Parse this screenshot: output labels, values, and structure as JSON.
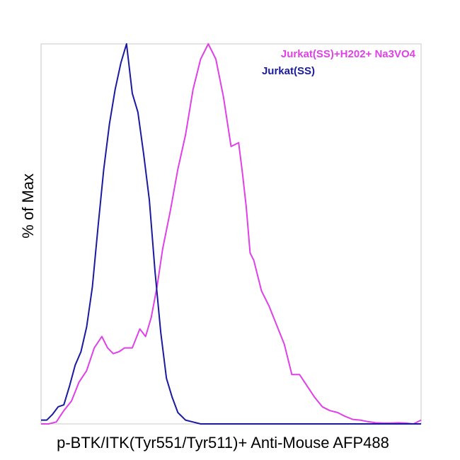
{
  "chart_data": {
    "type": "line",
    "title": "",
    "xlabel": "p-BTK/ITK(Tyr551/Tyr511)+ Anti-Mouse AFP488",
    "ylabel": "% of Max",
    "xlim": [
      0,
      100
    ],
    "ylim": [
      0,
      100
    ],
    "grid": false,
    "legend_position": "top-right",
    "series": [
      {
        "name": "Jurkat(SS)+H202+ Na3VO4",
        "color": "#e040e8",
        "x": [
          0,
          2,
          4,
          6,
          8,
          10,
          12,
          14,
          16,
          17.5,
          19,
          20.5,
          22,
          24,
          26,
          27.5,
          29,
          30.5,
          32,
          34,
          36,
          38,
          40,
          42,
          44,
          46,
          48,
          50,
          52,
          53,
          54,
          55,
          56,
          57,
          58,
          60,
          62,
          64,
          66,
          68,
          70,
          72,
          74,
          76,
          78,
          80,
          82,
          84,
          86,
          88,
          90,
          92,
          94,
          96,
          98,
          100
        ],
        "y": [
          0,
          0,
          0.5,
          3.5,
          6,
          11,
          14,
          20,
          23,
          20,
          18.5,
          19,
          20,
          20,
          25,
          23,
          28,
          36,
          46,
          56,
          67,
          76,
          88,
          96,
          100,
          96,
          86,
          73,
          74,
          66,
          57,
          45,
          43,
          39,
          35,
          31,
          26,
          21,
          13,
          13,
          10,
          7,
          4.5,
          3.5,
          3,
          2,
          1.2,
          1,
          0.6,
          0.3,
          0.2,
          0.2,
          0.3,
          0.2,
          0,
          1
        ]
      },
      {
        "name": "Jurkat(SS)",
        "color": "#1a1aa0",
        "x": [
          0,
          1.5,
          3,
          4.5,
          6,
          7.5,
          9,
          10.5,
          12,
          13.5,
          15,
          16.5,
          18,
          19.5,
          21,
          22.5,
          24,
          25.5,
          27,
          28.5,
          30,
          31.5,
          33,
          34.5,
          36,
          38,
          40,
          42,
          46,
          50,
          60,
          70,
          80,
          90,
          100
        ],
        "y": [
          1,
          1,
          2.5,
          4.5,
          5,
          10,
          15.5,
          19,
          25.5,
          36,
          52,
          67,
          79,
          88,
          95,
          100,
          87,
          82,
          71,
          59,
          40,
          24,
          12,
          7,
          3,
          1,
          0.5,
          0,
          0,
          0,
          0,
          0,
          0,
          0,
          0
        ]
      }
    ]
  }
}
